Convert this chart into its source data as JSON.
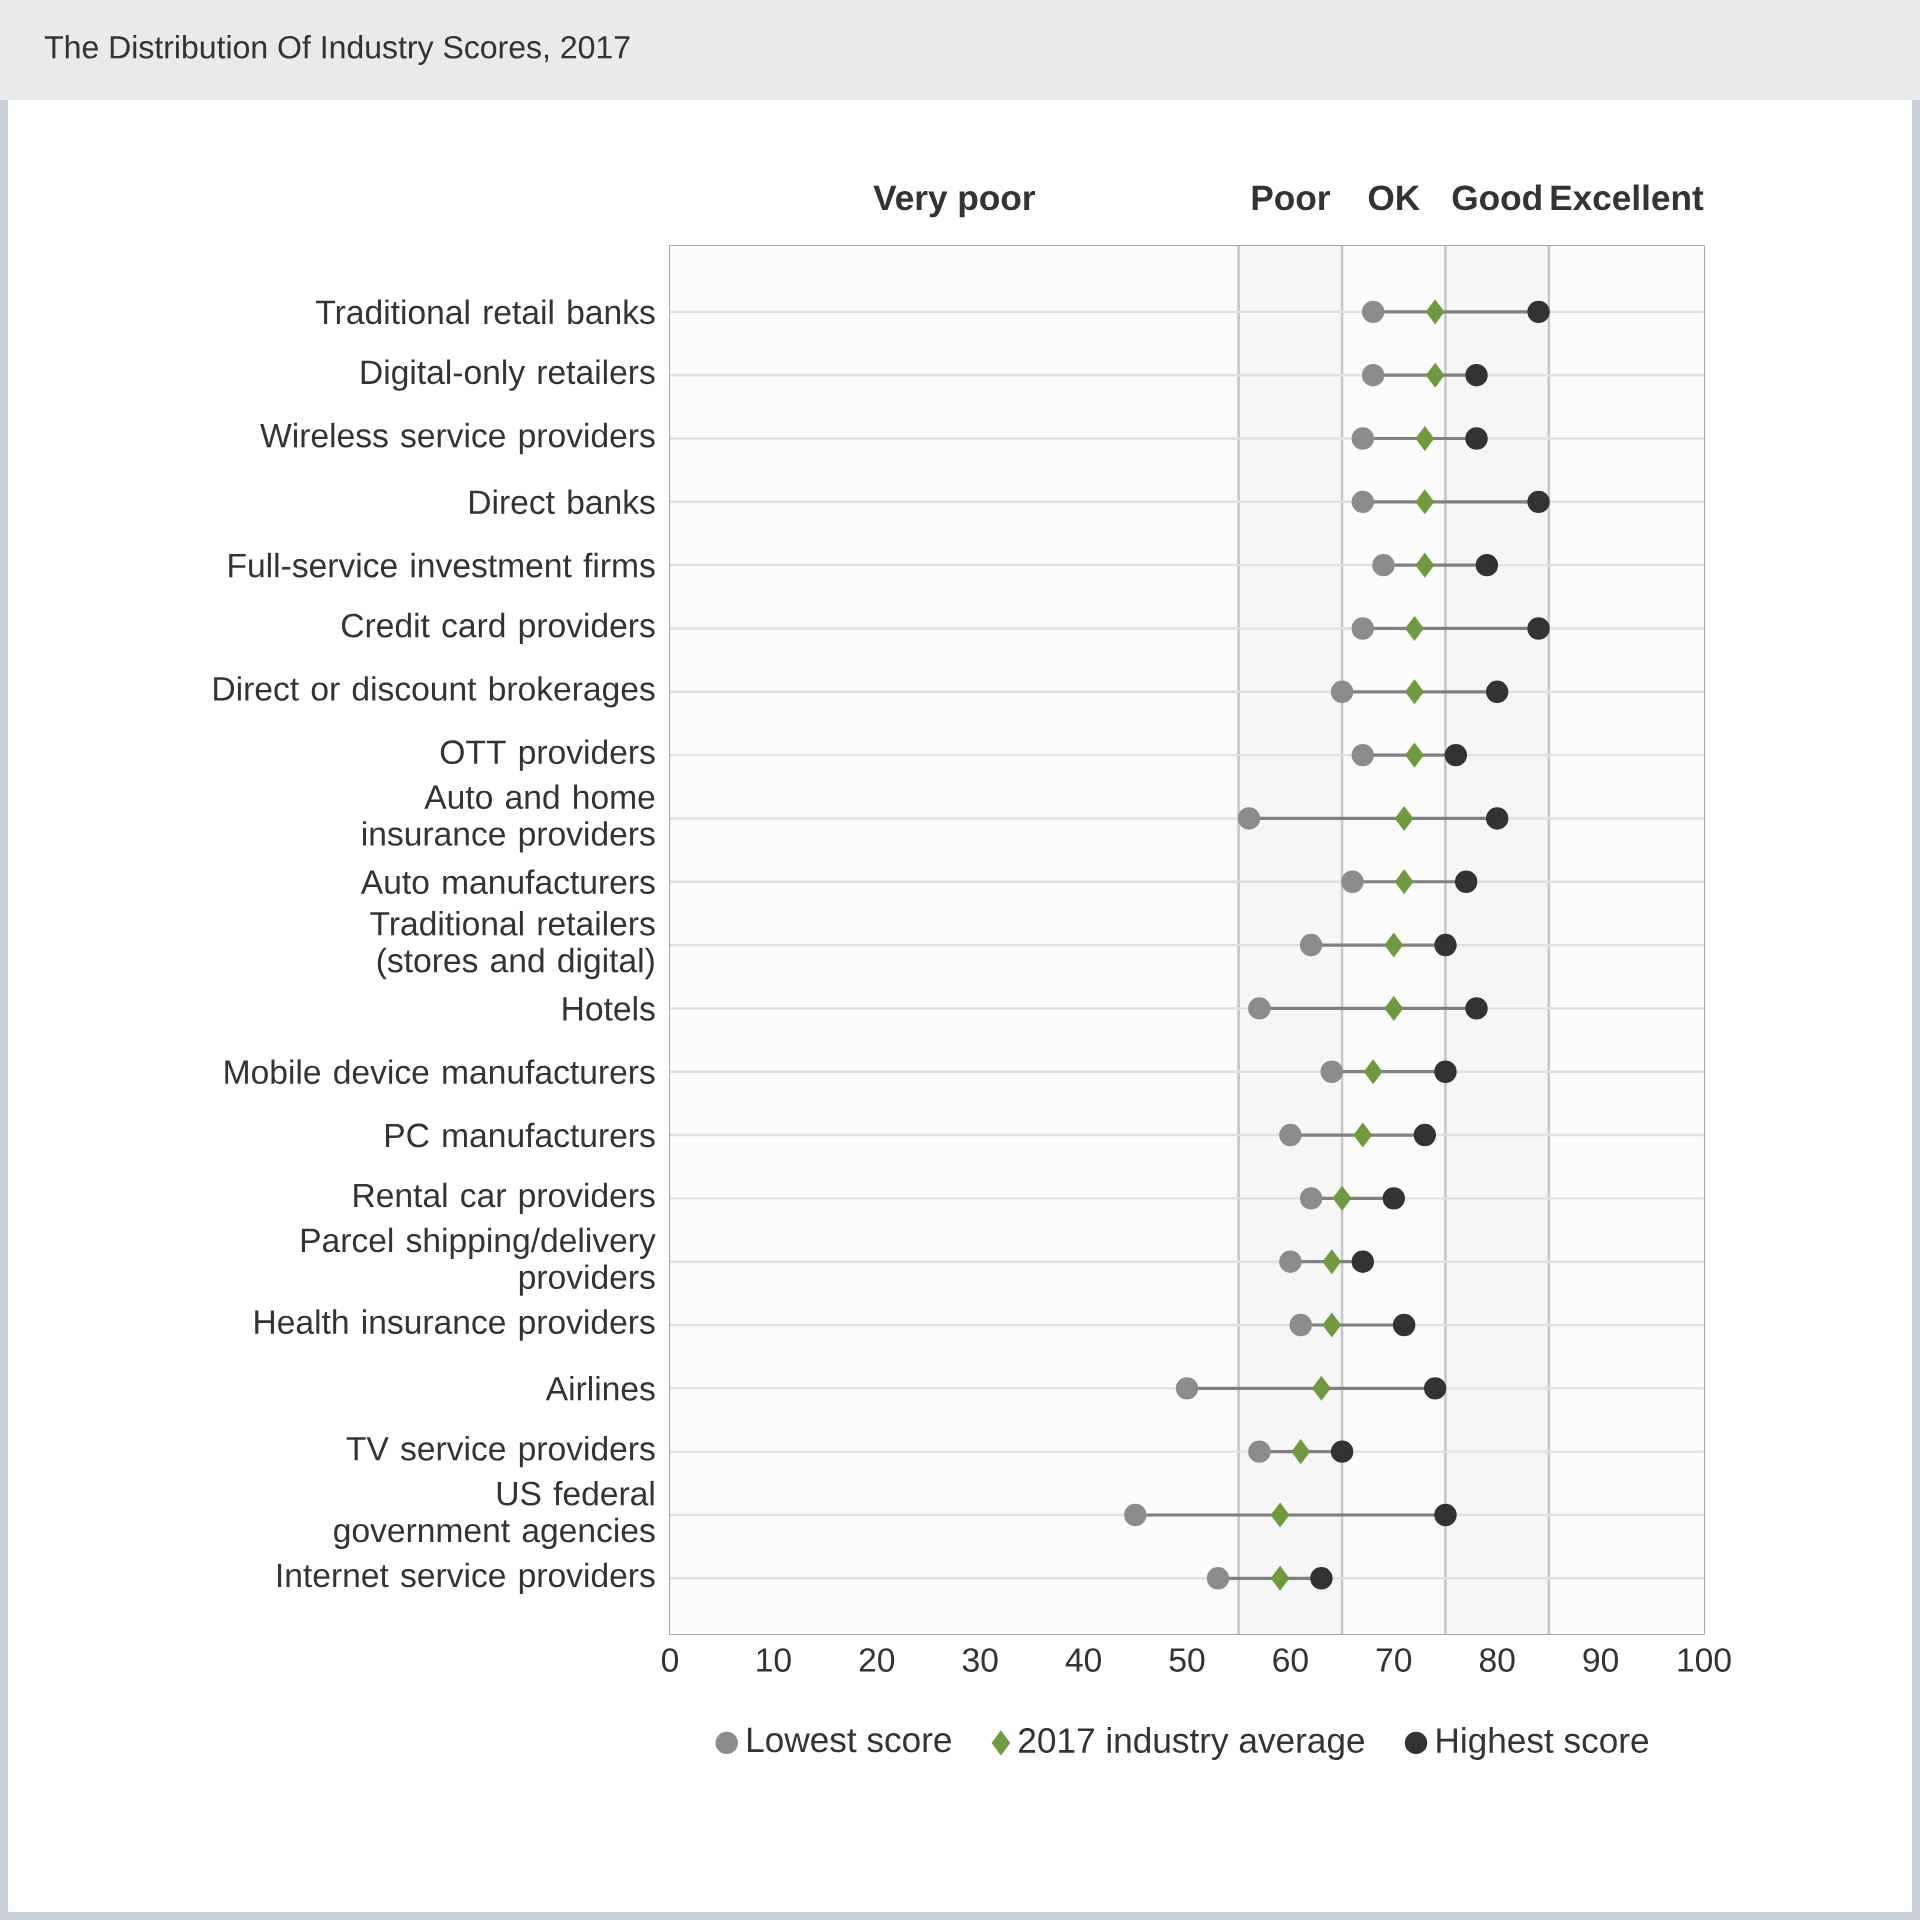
{
  "chart_data": {
    "type": "scatter",
    "title": "The Distribution Of Industry Scores, 2017",
    "orientation": "horizontal",
    "categories": [
      "Traditional retail banks",
      "Digital-only retailers",
      "Wireless service providers",
      "Direct banks",
      "Full-service investment firms",
      "Credit card providers",
      "Direct or discount brokerages",
      "OTT providers",
      "Auto and home insurance providers",
      "Auto manufacturers",
      "Traditional retailers (stores and digital)",
      "Hotels",
      "Mobile device manufacturers",
      "PC manufacturers",
      "Rental car providers",
      "Parcel shipping/delivery providers",
      "Health insurance providers",
      "Airlines",
      "TV service providers",
      "US federal government agencies",
      "Internet service providers"
    ],
    "series": [
      {
        "name": "Lowest score",
        "color": "#8c8c8c",
        "marker": "circle",
        "values": [
          68,
          68,
          67,
          67,
          69,
          67,
          65,
          67,
          56,
          66,
          62,
          57,
          64,
          60,
          62,
          60,
          61,
          50,
          57,
          45,
          53
        ]
      },
      {
        "name": "2017 industry average",
        "color": "#6f9a3f",
        "marker": "diamond",
        "values": [
          74,
          74,
          73,
          73,
          73,
          72,
          72,
          72,
          71,
          71,
          70,
          70,
          68,
          67,
          65,
          64,
          64,
          63,
          61,
          59,
          59
        ]
      },
      {
        "name": "Highest score",
        "color": "#333333",
        "marker": "circle",
        "values": [
          84,
          78,
          78,
          84,
          79,
          84,
          80,
          76,
          80,
          77,
          75,
          78,
          75,
          73,
          70,
          67,
          71,
          74,
          65,
          75,
          63
        ]
      }
    ],
    "xlim": [
      0,
      100
    ],
    "xticks": [
      0,
      10,
      20,
      30,
      40,
      50,
      60,
      70,
      80,
      90,
      100
    ],
    "bands": [
      {
        "axis": "x",
        "from": 0,
        "to": 55,
        "label": "Very poor",
        "color": "#fbfbfb"
      },
      {
        "axis": "x",
        "from": 55,
        "to": 65,
        "label": "Poor",
        "color": "#f6f6f6"
      },
      {
        "axis": "x",
        "from": 65,
        "to": 75,
        "label": "OK",
        "color": "#fbfbfb"
      },
      {
        "axis": "x",
        "from": 75,
        "to": 85,
        "label": "Good",
        "color": "#f6f6f6"
      },
      {
        "axis": "x",
        "from": 85,
        "to": 100,
        "label": "Excellent",
        "color": "#fbfbfb"
      }
    ],
    "grid": "y",
    "legend": "bottom"
  }
}
